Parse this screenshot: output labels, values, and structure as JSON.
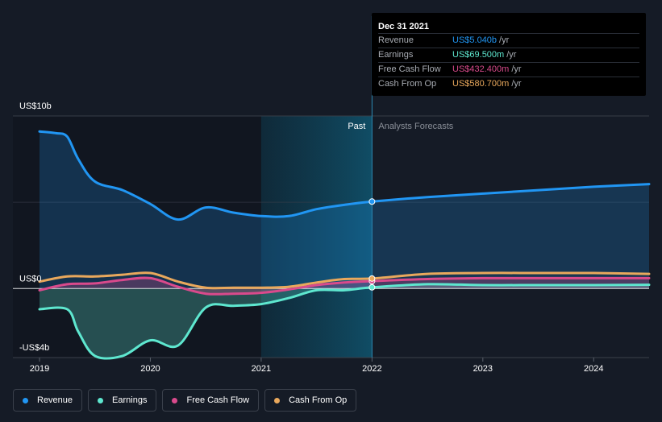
{
  "chart_data": {
    "type": "area",
    "title": "",
    "xlabel": "",
    "ylabel": "",
    "y_axis_labels": [
      "US$10b",
      "US$0",
      "-US$4b"
    ],
    "ylim": [
      -4,
      10
    ],
    "xlim": [
      2019,
      2024.5
    ],
    "x_ticks": [
      "2019",
      "2020",
      "2021",
      "2022",
      "2023",
      "2024"
    ],
    "regions": {
      "past_label": "Past",
      "forecast_label": "Analysts Forecasts",
      "divider_x": 2022.0,
      "highlight_start_x": 2021.0
    },
    "series": [
      {
        "name": "Revenue",
        "color": "#2196f3",
        "fill": true,
        "points": [
          [
            2019.0,
            9.1
          ],
          [
            2019.15,
            9.0
          ],
          [
            2019.25,
            8.8
          ],
          [
            2019.35,
            7.5
          ],
          [
            2019.5,
            6.2
          ],
          [
            2019.75,
            5.7
          ],
          [
            2020.0,
            4.9
          ],
          [
            2020.25,
            4.0
          ],
          [
            2020.5,
            4.7
          ],
          [
            2020.75,
            4.4
          ],
          [
            2021.0,
            4.2
          ],
          [
            2021.25,
            4.2
          ],
          [
            2021.5,
            4.6
          ],
          [
            2021.75,
            4.85
          ],
          [
            2022.0,
            5.04
          ],
          [
            2022.5,
            5.3
          ],
          [
            2023.0,
            5.5
          ],
          [
            2023.5,
            5.7
          ],
          [
            2024.0,
            5.9
          ],
          [
            2024.5,
            6.05
          ]
        ]
      },
      {
        "name": "Earnings",
        "color": "#5ee7cf",
        "fill": true,
        "points": [
          [
            2019.0,
            -1.2
          ],
          [
            2019.25,
            -1.2
          ],
          [
            2019.35,
            -2.5
          ],
          [
            2019.5,
            -3.9
          ],
          [
            2019.75,
            -3.9
          ],
          [
            2020.0,
            -3.0
          ],
          [
            2020.25,
            -3.3
          ],
          [
            2020.5,
            -1.1
          ],
          [
            2020.75,
            -1.0
          ],
          [
            2021.0,
            -0.9
          ],
          [
            2021.25,
            -0.55
          ],
          [
            2021.5,
            -0.1
          ],
          [
            2021.75,
            -0.1
          ],
          [
            2022.0,
            0.07
          ],
          [
            2022.5,
            0.25
          ],
          [
            2023.0,
            0.2
          ],
          [
            2023.5,
            0.2
          ],
          [
            2024.0,
            0.2
          ],
          [
            2024.5,
            0.22
          ]
        ]
      },
      {
        "name": "Free Cash Flow",
        "color": "#d94a8c",
        "fill": true,
        "points": [
          [
            2019.0,
            -0.1
          ],
          [
            2019.25,
            0.25
          ],
          [
            2019.5,
            0.3
          ],
          [
            2019.75,
            0.5
          ],
          [
            2020.0,
            0.6
          ],
          [
            2020.25,
            0.1
          ],
          [
            2020.5,
            -0.3
          ],
          [
            2020.75,
            -0.3
          ],
          [
            2021.0,
            -0.25
          ],
          [
            2021.25,
            -0.05
          ],
          [
            2021.5,
            0.2
          ],
          [
            2021.75,
            0.35
          ],
          [
            2022.0,
            0.43
          ],
          [
            2022.5,
            0.55
          ],
          [
            2023.0,
            0.6
          ],
          [
            2023.5,
            0.6
          ],
          [
            2024.0,
            0.6
          ],
          [
            2024.5,
            0.6
          ]
        ]
      },
      {
        "name": "Cash From Op",
        "color": "#e9a85c",
        "fill": false,
        "points": [
          [
            2019.0,
            0.4
          ],
          [
            2019.25,
            0.7
          ],
          [
            2019.5,
            0.7
          ],
          [
            2019.75,
            0.8
          ],
          [
            2020.0,
            0.9
          ],
          [
            2020.25,
            0.4
          ],
          [
            2020.5,
            0.05
          ],
          [
            2020.75,
            0.05
          ],
          [
            2021.0,
            0.05
          ],
          [
            2021.25,
            0.1
          ],
          [
            2021.5,
            0.35
          ],
          [
            2021.75,
            0.55
          ],
          [
            2022.0,
            0.58
          ],
          [
            2022.5,
            0.85
          ],
          [
            2023.0,
            0.9
          ],
          [
            2023.5,
            0.9
          ],
          [
            2024.0,
            0.9
          ],
          [
            2024.5,
            0.85
          ]
        ]
      }
    ]
  },
  "tooltip": {
    "date": "Dec 31 2021",
    "rows": [
      {
        "name": "Revenue",
        "value": "US$5.040b",
        "unit": "/yr",
        "color": "#2196f3"
      },
      {
        "name": "Earnings",
        "value": "US$69.500m",
        "unit": "/yr",
        "color": "#5ee7cf"
      },
      {
        "name": "Free Cash Flow",
        "value": "US$432.400m",
        "unit": "/yr",
        "color": "#d94a8c"
      },
      {
        "name": "Cash From Op",
        "value": "US$580.700m",
        "unit": "/yr",
        "color": "#e9a85c"
      }
    ]
  },
  "legend": [
    {
      "label": "Revenue",
      "color": "#2196f3"
    },
    {
      "label": "Earnings",
      "color": "#5ee7cf"
    },
    {
      "label": "Free Cash Flow",
      "color": "#d94a8c"
    },
    {
      "label": "Cash From Op",
      "color": "#e9a85c"
    }
  ]
}
